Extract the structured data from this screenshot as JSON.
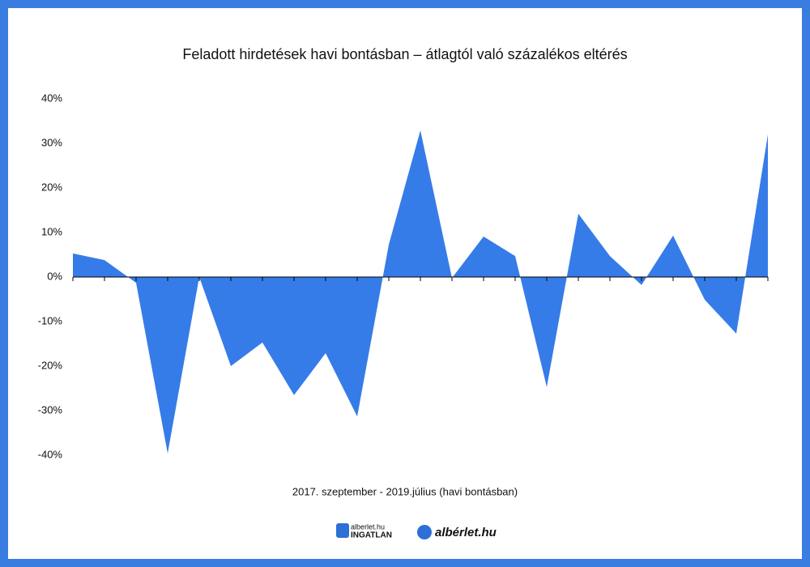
{
  "chart_data": {
    "type": "area",
    "title": "Feladott hirdetések havi bontásban – átlagtól való százalékos eltérés",
    "x_label": "2017. szeptember - 2019.július (havi bontásban)",
    "categories": [
      null,
      null,
      null,
      null,
      null,
      null,
      null,
      null,
      null,
      null,
      null,
      null,
      null,
      null,
      null,
      null,
      null,
      null,
      null,
      null,
      null,
      null,
      null
    ],
    "values": [
      5.3,
      3.8,
      -1.3,
      -39.6,
      0,
      -20,
      -14.7,
      -26.5,
      -17.1,
      -31.3,
      7.3,
      32.9,
      -0.2,
      9.1,
      4.7,
      -24.7,
      14.2,
      4.7,
      -1.8,
      9.3,
      -5.1,
      -12.7,
      32
    ],
    "color": "#367ce8",
    "ylim": [
      -40,
      40
    ],
    "yticks": [
      {
        "value": 40,
        "label": "40%"
      },
      {
        "value": 30,
        "label": "30%"
      },
      {
        "value": 20,
        "label": "20%"
      },
      {
        "value": 10,
        "label": "10%"
      },
      {
        "value": 0,
        "label": "0%"
      },
      {
        "value": -10,
        "label": "-10%"
      },
      {
        "value": -20,
        "label": "-20%"
      },
      {
        "value": -30,
        "label": "-30%"
      },
      {
        "value": -40,
        "label": "-40%"
      }
    ],
    "grid": false
  },
  "footer": {
    "logo_left_top": "alberlet.hu",
    "logo_left_bottom": "INGATLAN",
    "logo_right": "albérlet.hu"
  }
}
